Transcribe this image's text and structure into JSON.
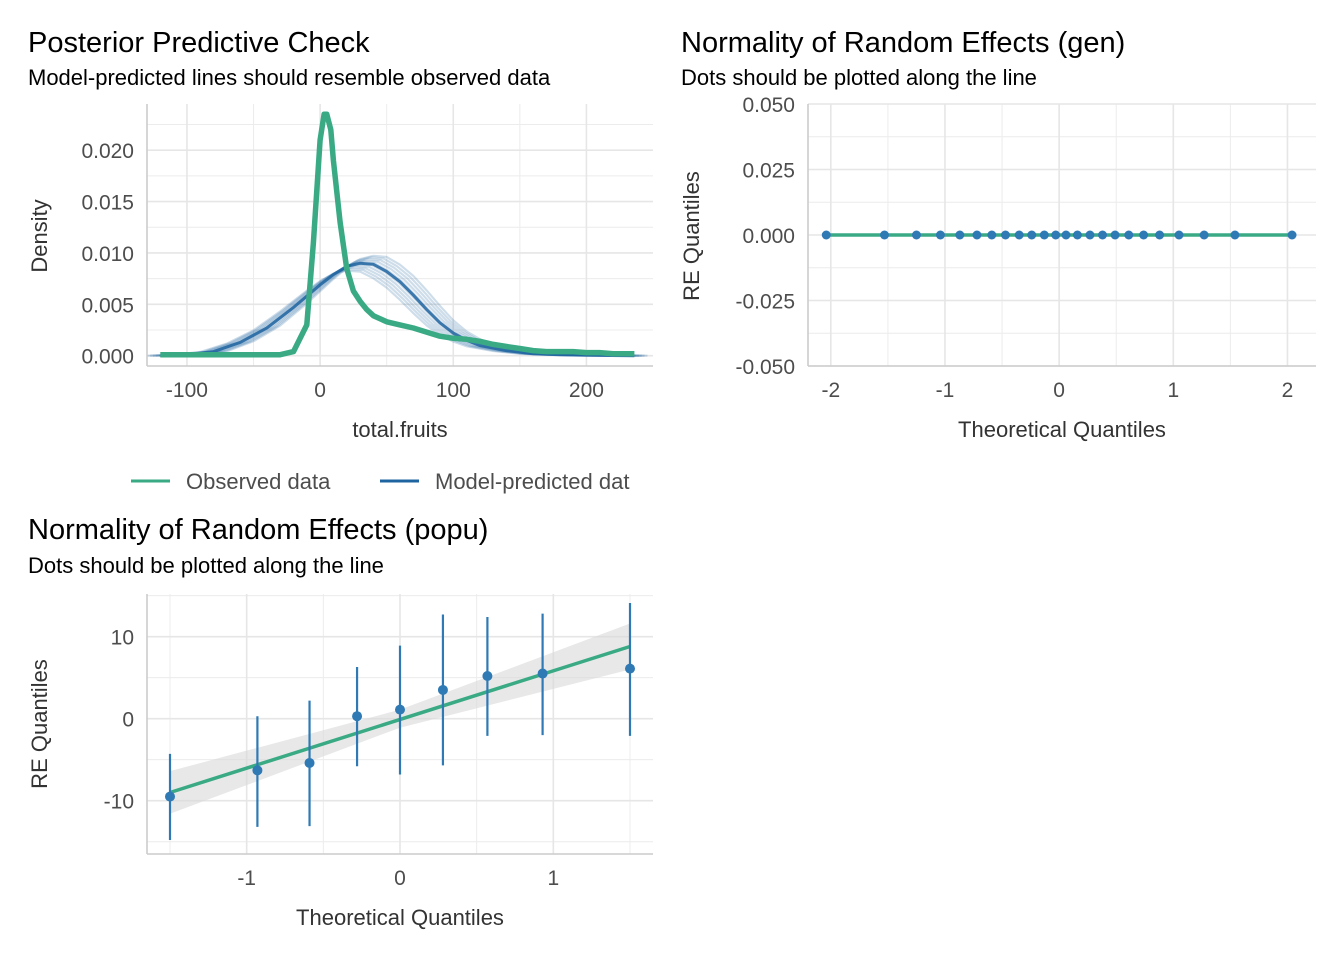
{
  "colors": {
    "observed": "#3aaa85",
    "predicted": "#1e64a0",
    "points": "#2f7ab5",
    "ribbon": "#d9d9d9"
  },
  "chart_data": [
    {
      "id": "ppc",
      "type": "line",
      "title": "Posterior Predictive Check",
      "subtitle": "Model-predicted lines should resemble observed data",
      "xlabel": "total.fruits",
      "ylabel": "Density",
      "xlim": [
        -130,
        250
      ],
      "ylim": [
        -0.001,
        0.0245
      ],
      "x_ticks": [
        -100,
        0,
        100,
        200
      ],
      "x_tick_labels": [
        "-100",
        "0",
        "100",
        "200"
      ],
      "y_ticks": [
        0.0,
        0.005,
        0.01,
        0.015,
        0.02
      ],
      "y_tick_labels": [
        "0.000",
        "0.005",
        "0.010",
        "0.015",
        "0.020"
      ],
      "grid": true,
      "legend": {
        "position": "bottom",
        "items": [
          {
            "label": "Observed data",
            "color": "#3aaa85"
          },
          {
            "label": "Model-predicted dat",
            "color": "#1e64a0"
          }
        ]
      },
      "series": [
        {
          "name": "Observed data",
          "x": [
            -120,
            -60,
            -30,
            -20,
            -10,
            -5,
            0,
            3,
            5,
            8,
            10,
            15,
            20,
            25,
            30,
            35,
            40,
            50,
            60,
            70,
            80,
            90,
            100,
            110,
            120,
            130,
            140,
            150,
            160,
            170,
            180,
            190,
            200,
            210,
            220,
            236
          ],
          "y": [
            0.0001,
            0.0001,
            0.0001,
            0.0004,
            0.003,
            0.011,
            0.021,
            0.0235,
            0.0235,
            0.022,
            0.019,
            0.013,
            0.0085,
            0.0063,
            0.0053,
            0.0045,
            0.0039,
            0.0033,
            0.003,
            0.0027,
            0.0023,
            0.0019,
            0.0017,
            0.0016,
            0.0014,
            0.0011,
            0.0009,
            0.0007,
            0.0005,
            0.0004,
            0.0004,
            0.0004,
            0.0003,
            0.0003,
            0.0002,
            0.0002
          ]
        },
        {
          "name": "Model-predicted dat",
          "x": [
            -120,
            -100,
            -80,
            -60,
            -40,
            -20,
            0,
            10,
            20,
            30,
            40,
            50,
            60,
            70,
            80,
            90,
            100,
            110,
            120,
            140,
            160,
            180,
            200,
            236
          ],
          "y": [
            0.0,
            0.0001,
            0.0004,
            0.0013,
            0.0027,
            0.0047,
            0.0069,
            0.0079,
            0.0087,
            0.009,
            0.0089,
            0.0082,
            0.0072,
            0.0059,
            0.0045,
            0.0032,
            0.0022,
            0.0015,
            0.001,
            0.0005,
            0.0002,
            0.0001,
            5e-05,
            0.0
          ]
        }
      ]
    },
    {
      "id": "gen",
      "type": "scatter",
      "title": "Normality of Random Effects (gen)",
      "subtitle": "Dots should be plotted along the line",
      "xlabel": "Theoretical Quantiles",
      "ylabel": "RE Quantiles",
      "xlim": [
        -2.2,
        2.25
      ],
      "ylim": [
        -0.05,
        0.05
      ],
      "x_ticks": [
        -2,
        -1,
        0,
        1,
        2
      ],
      "x_tick_labels": [
        "-2",
        "-1",
        "0",
        "1",
        "2"
      ],
      "y_ticks": [
        -0.05,
        -0.025,
        0.0,
        0.025,
        0.05
      ],
      "y_tick_labels": [
        "-0.050",
        "-0.025",
        "0.000",
        "0.025",
        "0.050"
      ],
      "grid": true,
      "x": [
        -2.04,
        -1.53,
        -1.25,
        -1.04,
        -0.87,
        -0.72,
        -0.59,
        -0.47,
        -0.35,
        -0.24,
        -0.13,
        -0.03,
        0.06,
        0.16,
        0.27,
        0.38,
        0.49,
        0.61,
        0.74,
        0.88,
        1.05,
        1.27,
        1.54,
        2.04
      ],
      "y": [
        0,
        0,
        0,
        0,
        0,
        0,
        0,
        0,
        0,
        0,
        0,
        0,
        0,
        0,
        0,
        0,
        0,
        0,
        0,
        0,
        0,
        0,
        0,
        0
      ],
      "fit_line": {
        "x": [
          -2.04,
          2.04
        ],
        "y": [
          0,
          0
        ]
      }
    },
    {
      "id": "popu",
      "type": "scatter",
      "title": "Normality of Random Effects (popu)",
      "subtitle": "Dots should be plotted along the line",
      "xlabel": "Theoretical Quantiles",
      "ylabel": "RE Quantiles",
      "xlim": [
        -1.65,
        1.65
      ],
      "ylim": [
        -16.5,
        15.2
      ],
      "x_ticks": [
        -1,
        0,
        1
      ],
      "x_tick_labels": [
        "-1",
        "0",
        "1"
      ],
      "y_ticks": [
        -10,
        0,
        10
      ],
      "y_tick_labels": [
        "-10",
        "0",
        "10"
      ],
      "grid": true,
      "x": [
        -1.5,
        -0.93,
        -0.59,
        -0.28,
        0.0,
        0.28,
        0.57,
        0.93,
        1.5
      ],
      "y": [
        -9.5,
        -6.3,
        -5.4,
        0.3,
        1.1,
        3.5,
        5.2,
        5.5,
        6.1
      ],
      "err_low": [
        -14.8,
        -13.2,
        -13.1,
        -5.8,
        -6.8,
        -5.7,
        -2.1,
        -2.0,
        -2.1
      ],
      "err_high": [
        -4.3,
        0.3,
        2.2,
        6.3,
        8.9,
        12.7,
        12.4,
        12.8,
        14.1
      ],
      "fit_line": {
        "x": [
          -1.5,
          1.5
        ],
        "y": [
          -9.0,
          8.8
        ]
      },
      "ribbon": {
        "x": [
          -1.5,
          0.0,
          1.5
        ],
        "low": [
          -11.6,
          -1.1,
          6.0
        ],
        "high": [
          -6.4,
          1.1,
          11.6
        ]
      }
    }
  ]
}
